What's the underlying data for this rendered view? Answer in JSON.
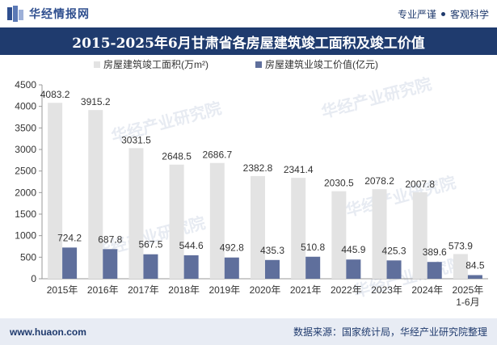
{
  "header": {
    "brand": "华经情报网",
    "tag1": "专业严谨",
    "tag2": "客观科学"
  },
  "watermark": "华经产业研究院",
  "footer": {
    "site": "www.huaon.com",
    "source": "数据来源：国家统计局，华经产业研究院整理"
  },
  "colors": {
    "title_bg": "#1f3b6e",
    "series1": "#e3e3e3",
    "series2": "#5f6f9c"
  },
  "chart_data": {
    "type": "bar",
    "title": "2015-2025年6月甘肃省各房屋建筑竣工面积及竣工价值",
    "categories": [
      "2015年",
      "2016年",
      "2017年",
      "2018年",
      "2019年",
      "2020年",
      "2021年",
      "2022年",
      "2023年",
      "2024年",
      "2025年\n1-6月"
    ],
    "series": [
      {
        "name": "房屋建筑竣工面积(万m²)",
        "values": [
          4083.2,
          3915.2,
          3031.5,
          2648.5,
          2686.7,
          2382.8,
          2341.4,
          2030.5,
          2078.2,
          2007.8,
          573.9
        ],
        "labels": [
          "4083.2",
          "3915.2",
          "3031.5",
          "2648.5",
          "2686.7",
          "2382.8",
          "2341.4",
          "2030.5",
          "2078.2",
          "2007.8",
          "573.9"
        ]
      },
      {
        "name": "房屋建筑业竣工价值(亿元)",
        "values": [
          724.2,
          687.8,
          567.5,
          544.6,
          492.8,
          435.3,
          510.8,
          445.9,
          425.3,
          389.6,
          84.5
        ],
        "labels": [
          "724.2",
          "687.8",
          "567.5",
          "544.6",
          "492.8",
          "435.3",
          "510.8",
          "445.9",
          "425.3",
          "389.6",
          "84.5"
        ]
      }
    ],
    "ylim": [
      0,
      4500
    ],
    "yticks": [
      0,
      500,
      1000,
      1500,
      2000,
      2500,
      3000,
      3500,
      4000,
      4500
    ],
    "ytick_labels": [
      "0",
      "500",
      "1000",
      "1500",
      "2000",
      "2500",
      "3000",
      "3500",
      "4000",
      "4500"
    ],
    "xlabel": "",
    "ylabel": "",
    "legend": "top-center",
    "grid": false
  }
}
